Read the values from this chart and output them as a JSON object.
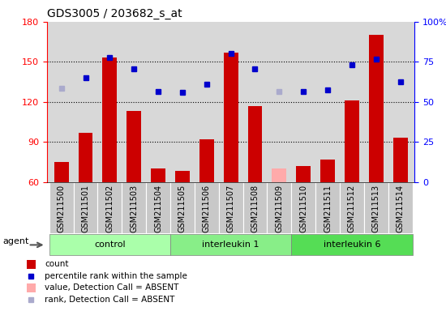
{
  "title": "GDS3005 / 203682_s_at",
  "samples": [
    "GSM211500",
    "GSM211501",
    "GSM211502",
    "GSM211503",
    "GSM211504",
    "GSM211505",
    "GSM211506",
    "GSM211507",
    "GSM211508",
    "GSM211509",
    "GSM211510",
    "GSM211511",
    "GSM211512",
    "GSM211513",
    "GSM211514"
  ],
  "counts": [
    75,
    97,
    153,
    113,
    70,
    68,
    92,
    157,
    117,
    70,
    72,
    77,
    121,
    170,
    93
  ],
  "absent_count": [
    0,
    0,
    0,
    0,
    0,
    0,
    0,
    0,
    0,
    1,
    0,
    0,
    0,
    0,
    0
  ],
  "percentile": [
    130,
    138,
    153,
    145,
    128,
    127,
    133,
    156,
    145,
    128,
    128,
    129,
    148,
    152,
    135
  ],
  "absent_rank": [
    1,
    0,
    0,
    0,
    0,
    0,
    0,
    0,
    0,
    1,
    0,
    0,
    0,
    0,
    0
  ],
  "groups": [
    {
      "label": "control",
      "start": 0,
      "end": 4,
      "color": "#aaffaa"
    },
    {
      "label": "interleukin 1",
      "start": 5,
      "end": 9,
      "color": "#88ee88"
    },
    {
      "label": "interleukin 6",
      "start": 10,
      "end": 14,
      "color": "#55dd55"
    }
  ],
  "ylim_left": [
    60,
    180
  ],
  "ylim_right": [
    0,
    100
  ],
  "yticks_left": [
    60,
    90,
    120,
    150,
    180
  ],
  "yticks_right": [
    0,
    25,
    50,
    75,
    100
  ],
  "bar_color": "#cc0000",
  "absent_bar_color": "#ffaaaa",
  "dot_color": "#0000cc",
  "absent_dot_color": "#aaaacc",
  "plot_bg_color": "#d8d8d8",
  "tick_label_bg": "#c8c8c8",
  "legend_items": [
    {
      "label": "count",
      "color": "#cc0000",
      "type": "bar"
    },
    {
      "label": "percentile rank within the sample",
      "color": "#0000cc",
      "type": "dot"
    },
    {
      "label": "value, Detection Call = ABSENT",
      "color": "#ffaaaa",
      "type": "bar"
    },
    {
      "label": "rank, Detection Call = ABSENT",
      "color": "#aaaacc",
      "type": "dot"
    }
  ]
}
